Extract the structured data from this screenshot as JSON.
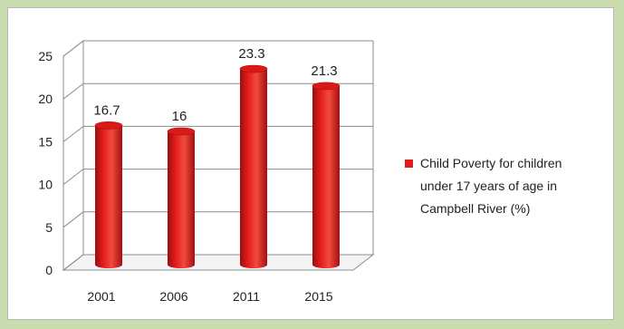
{
  "chart_data": {
    "type": "bar",
    "categories": [
      "2001",
      "2006",
      "2011",
      "2015"
    ],
    "series": [
      {
        "name": "Child Poverty for children under 17 years of age in Campbell River (%)",
        "values": [
          16.7,
          16,
          23.3,
          21.3
        ],
        "data_labels": [
          "16.7",
          "16",
          "23.3",
          "21.3"
        ],
        "color": "#e01b1b"
      }
    ],
    "ylim": [
      0,
      25
    ],
    "yticks": [
      "0",
      "5",
      "10",
      "15",
      "20",
      "25"
    ],
    "grid": true,
    "legend_position": "right",
    "legend_lines": [
      "Child Poverty for children",
      "under 17 years of age in",
      "Campbell River (%)"
    ],
    "title": "",
    "xlabel": "",
    "ylabel": ""
  }
}
